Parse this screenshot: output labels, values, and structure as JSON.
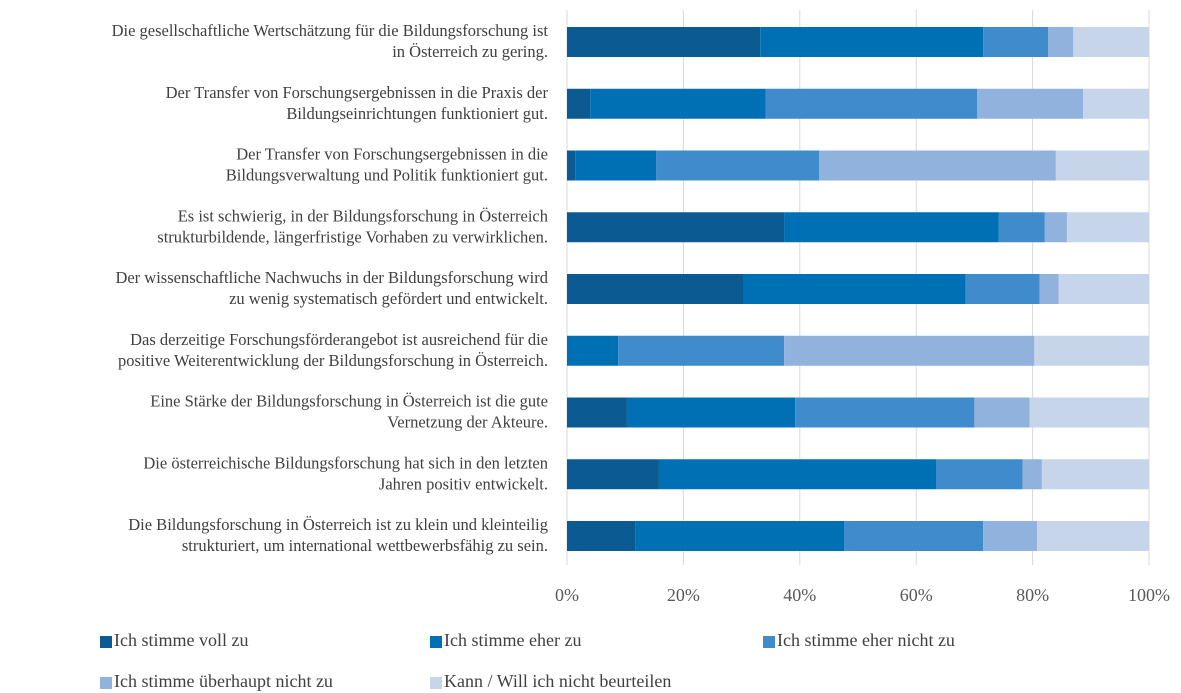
{
  "chart_data": {
    "type": "stacked_barh",
    "categories": [
      [
        "Die gesellschaftliche Wertschätzung für die Bildungsforschung ist",
        "in Österreich zu gering."
      ],
      [
        "Der Transfer von Forschungsergebnissen in die Praxis der",
        "Bildungseinrichtungen funktioniert gut."
      ],
      [
        "Der Transfer von Forschungsergebnissen in die",
        "Bildungsverwaltung und Politik funktioniert gut."
      ],
      [
        "Es ist schwierig, in der Bildungsforschung in Österreich",
        "strukturbildende, längerfristige Vorhaben zu verwirklichen."
      ],
      [
        "Der wissenschaftliche Nachwuchs in der Bildungsforschung wird",
        "zu wenig systematisch gefördert und entwickelt."
      ],
      [
        "Das derzeitige Forschungsförderangebot ist ausreichend für die",
        "positive Weiterentwicklung der Bildungsforschung in Österreich."
      ],
      [
        "Eine Stärke der Bildungsforschung in Österreich ist die gute",
        "Vernetzung der Akteure."
      ],
      [
        "Die österreichische Bildungsforschung hat sich in den letzten",
        "Jahren positiv entwickelt."
      ],
      [
        "Die Bildungsforschung in Österreich ist zu klein und kleinteilig",
        "strukturiert, um international wettbewerbsfähig zu sein."
      ]
    ],
    "series": [
      {
        "name": "Ich stimme voll zu",
        "color": "#0b5b92",
        "values": [
          33.2,
          4.0,
          1.4,
          37.3,
          30.4,
          0,
          10.3,
          15.8,
          11.7
        ]
      },
      {
        "name": "Ich stimme eher zu",
        "color": "#0070b4",
        "values": [
          38.3,
          30.1,
          13.9,
          36.9,
          38.1,
          8.8,
          28.9,
          47.6,
          35.9
        ]
      },
      {
        "name": "Ich stimme eher nicht zu",
        "color": "#3f8bcb",
        "values": [
          11.2,
          36.4,
          28.0,
          7.9,
          12.7,
          28.5,
          30.8,
          14.9,
          23.9
        ]
      },
      {
        "name": "Ich stimme überhaupt nicht zu",
        "color": "#91b2dc",
        "values": [
          4.3,
          18.2,
          40.7,
          3.8,
          3.3,
          43.0,
          9.5,
          3.3,
          9.3
        ]
      },
      {
        "name": "Kann / Will ich nicht beurteilen",
        "color": "#c6d5ea",
        "values": [
          13.0,
          11.3,
          16.0,
          14.1,
          15.5,
          19.7,
          20.5,
          18.4,
          19.2
        ]
      }
    ],
    "xlim": [
      0,
      100
    ],
    "xticks": [
      {
        "value": 0,
        "label": "0%"
      },
      {
        "value": 20,
        "label": "20%"
      },
      {
        "value": 40,
        "label": "40%"
      },
      {
        "value": 60,
        "label": "60%"
      },
      {
        "value": 80,
        "label": "80%"
      },
      {
        "value": 100,
        "label": "100%"
      }
    ],
    "grid": true,
    "legend": "bottom"
  }
}
